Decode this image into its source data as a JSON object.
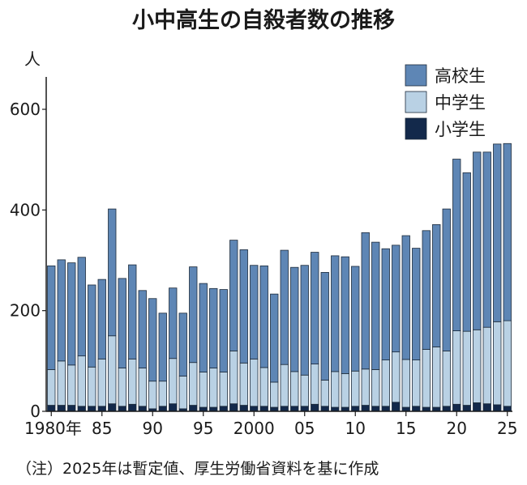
{
  "chart_data": {
    "type": "bar",
    "stacked": true,
    "title": "小中高生の自殺者数の推移",
    "ylabel": "人",
    "ylim": [
      0,
      600
    ],
    "yticks": [
      0,
      200,
      400,
      600
    ],
    "x": [
      1980,
      1981,
      1982,
      1983,
      1984,
      1985,
      1986,
      1987,
      1988,
      1989,
      1990,
      1991,
      1992,
      1993,
      1994,
      1995,
      1996,
      1997,
      1998,
      1999,
      2000,
      2001,
      2002,
      2003,
      2004,
      2005,
      2006,
      2007,
      2008,
      2009,
      2010,
      2011,
      2012,
      2013,
      2014,
      2015,
      2016,
      2017,
      2018,
      2019,
      2020,
      2021,
      2022,
      2023,
      2024,
      2025
    ],
    "xtick_labels": [
      {
        "x": 1980,
        "label": "1980年"
      },
      {
        "x": 1985,
        "label": "85"
      },
      {
        "x": 1990,
        "label": "90"
      },
      {
        "x": 1995,
        "label": "95"
      },
      {
        "x": 2000,
        "label": "2000"
      },
      {
        "x": 2005,
        "label": "05"
      },
      {
        "x": 2010,
        "label": "10"
      },
      {
        "x": 2015,
        "label": "15"
      },
      {
        "x": 2020,
        "label": "20"
      },
      {
        "x": 2025,
        "label": "25"
      }
    ],
    "series": [
      {
        "name": "小学生",
        "color": "#13294b",
        "values": [
          12,
          12,
          12,
          10,
          10,
          10,
          15,
          10,
          14,
          10,
          5,
          10,
          15,
          5,
          12,
          8,
          8,
          10,
          15,
          12,
          10,
          10,
          8,
          10,
          10,
          10,
          14,
          10,
          8,
          8,
          10,
          12,
          10,
          10,
          18,
          8,
          10,
          8,
          8,
          10,
          14,
          12,
          17,
          15,
          13,
          10
        ]
      },
      {
        "name": "中学生",
        "color": "#b9d1e4",
        "values": [
          71,
          88,
          80,
          100,
          78,
          94,
          135,
          76,
          90,
          76,
          55,
          50,
          90,
          65,
          85,
          70,
          78,
          68,
          105,
          84,
          94,
          77,
          50,
          83,
          69,
          62,
          80,
          52,
          71,
          67,
          70,
          72,
          73,
          92,
          100,
          95,
          92,
          115,
          120,
          110,
          146,
          147,
          145,
          152,
          165,
          170
        ]
      },
      {
        "name": "高校生",
        "color": "#5e86b5",
        "values": [
          206,
          201,
          203,
          196,
          163,
          158,
          252,
          178,
          187,
          154,
          164,
          135,
          140,
          125,
          190,
          176,
          158,
          164,
          220,
          225,
          186,
          202,
          175,
          227,
          207,
          218,
          222,
          214,
          230,
          232,
          208,
          271,
          253,
          221,
          212,
          246,
          222,
          236,
          243,
          282,
          341,
          315,
          353,
          348,
          353,
          352
        ]
      }
    ],
    "legend": {
      "placement": "top-right",
      "entries": [
        "高校生",
        "中学生",
        "小学生"
      ]
    },
    "note": "（注）2025年は暫定値、厚生労働省資料を基に作成",
    "grid": false
  }
}
